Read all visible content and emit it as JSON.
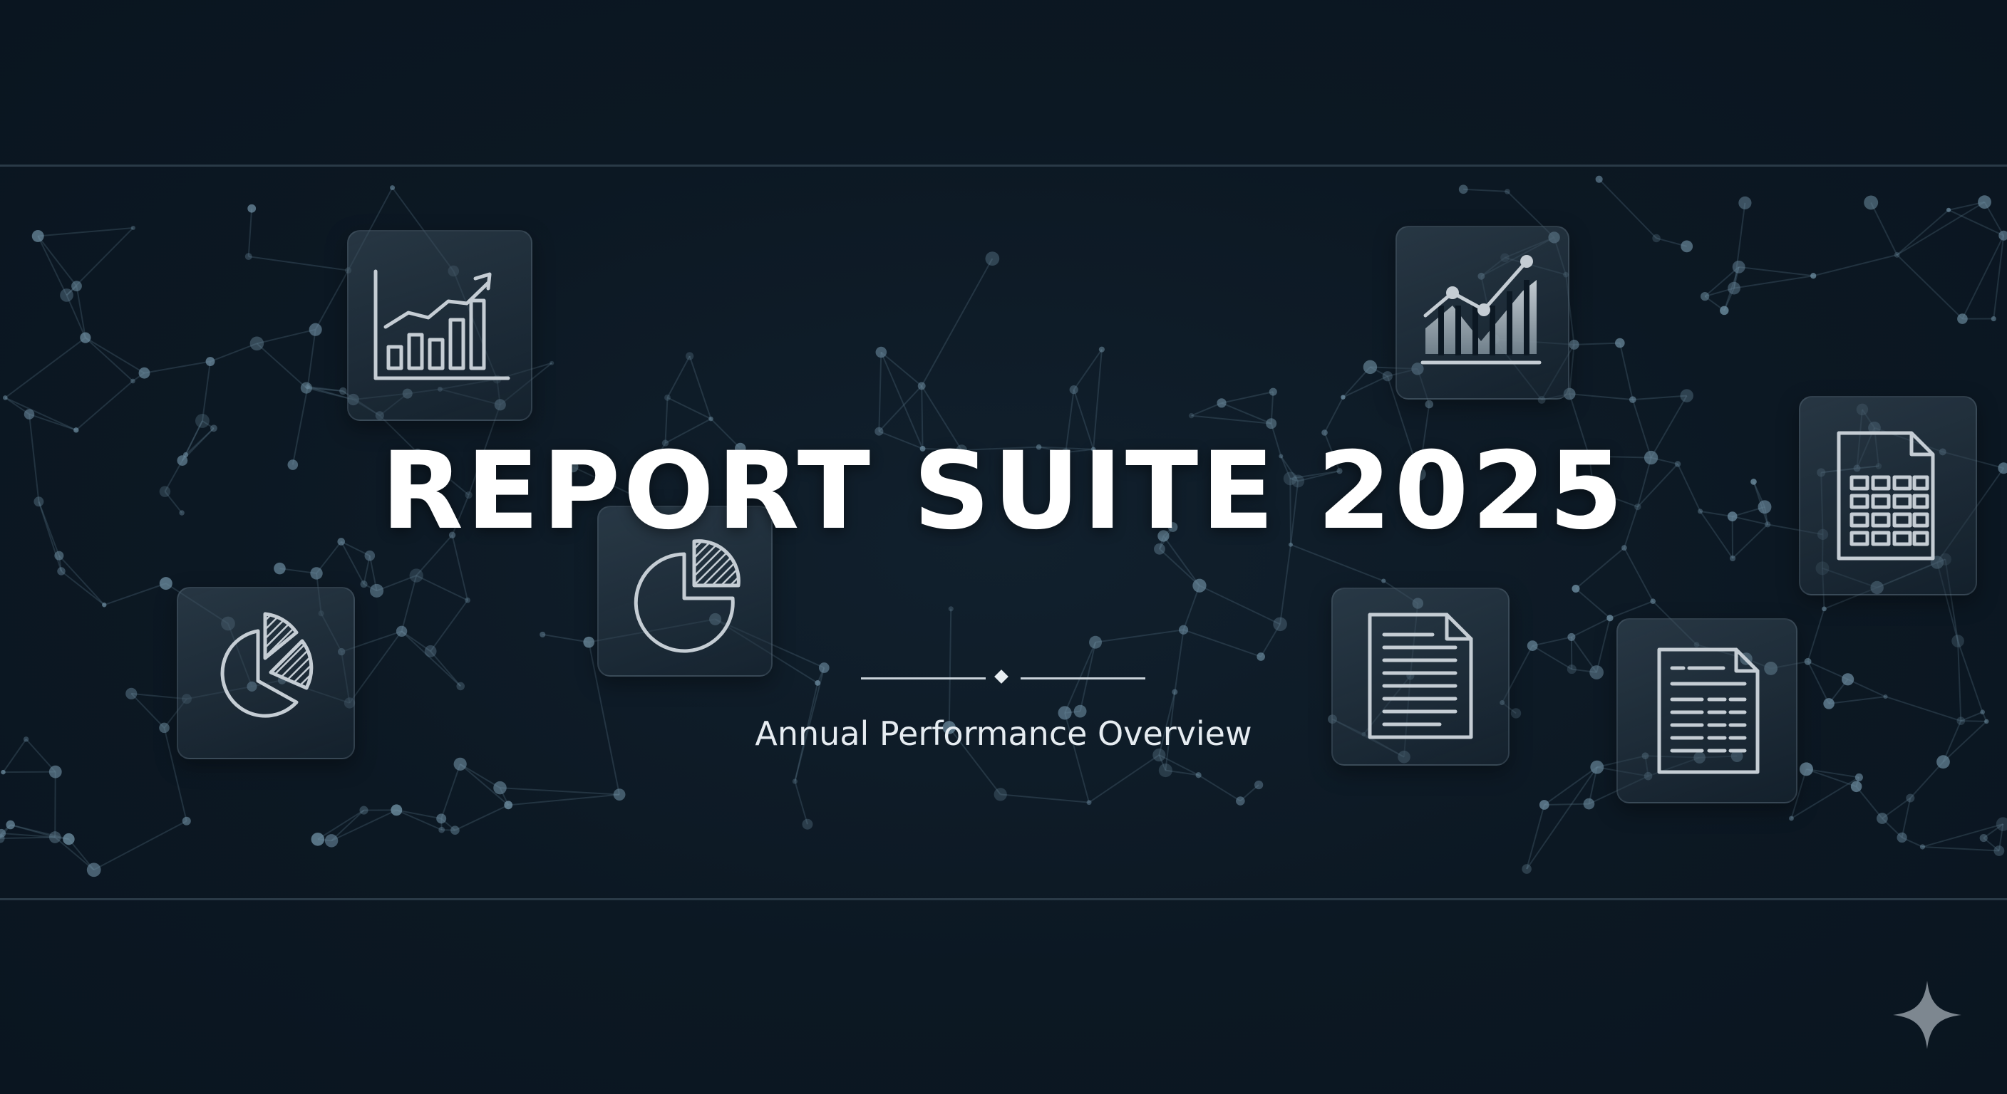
{
  "title": "REPORT SUITE 2025",
  "subtitle": "Annual Performance Overview",
  "icons": [
    "growth-bar-chart-icon",
    "pie-chart-icon",
    "pie-chart-icon",
    "area-line-chart-icon",
    "document-icon",
    "spreadsheet-document-icon",
    "calculator-grid-icon",
    "sparkle-icon"
  ],
  "colors": {
    "background": "#0c1823",
    "band_line": "#2a3a47",
    "title": "#ffffff",
    "icon_stroke": "#c5cdd4",
    "network_node": "#6f8fa3"
  }
}
